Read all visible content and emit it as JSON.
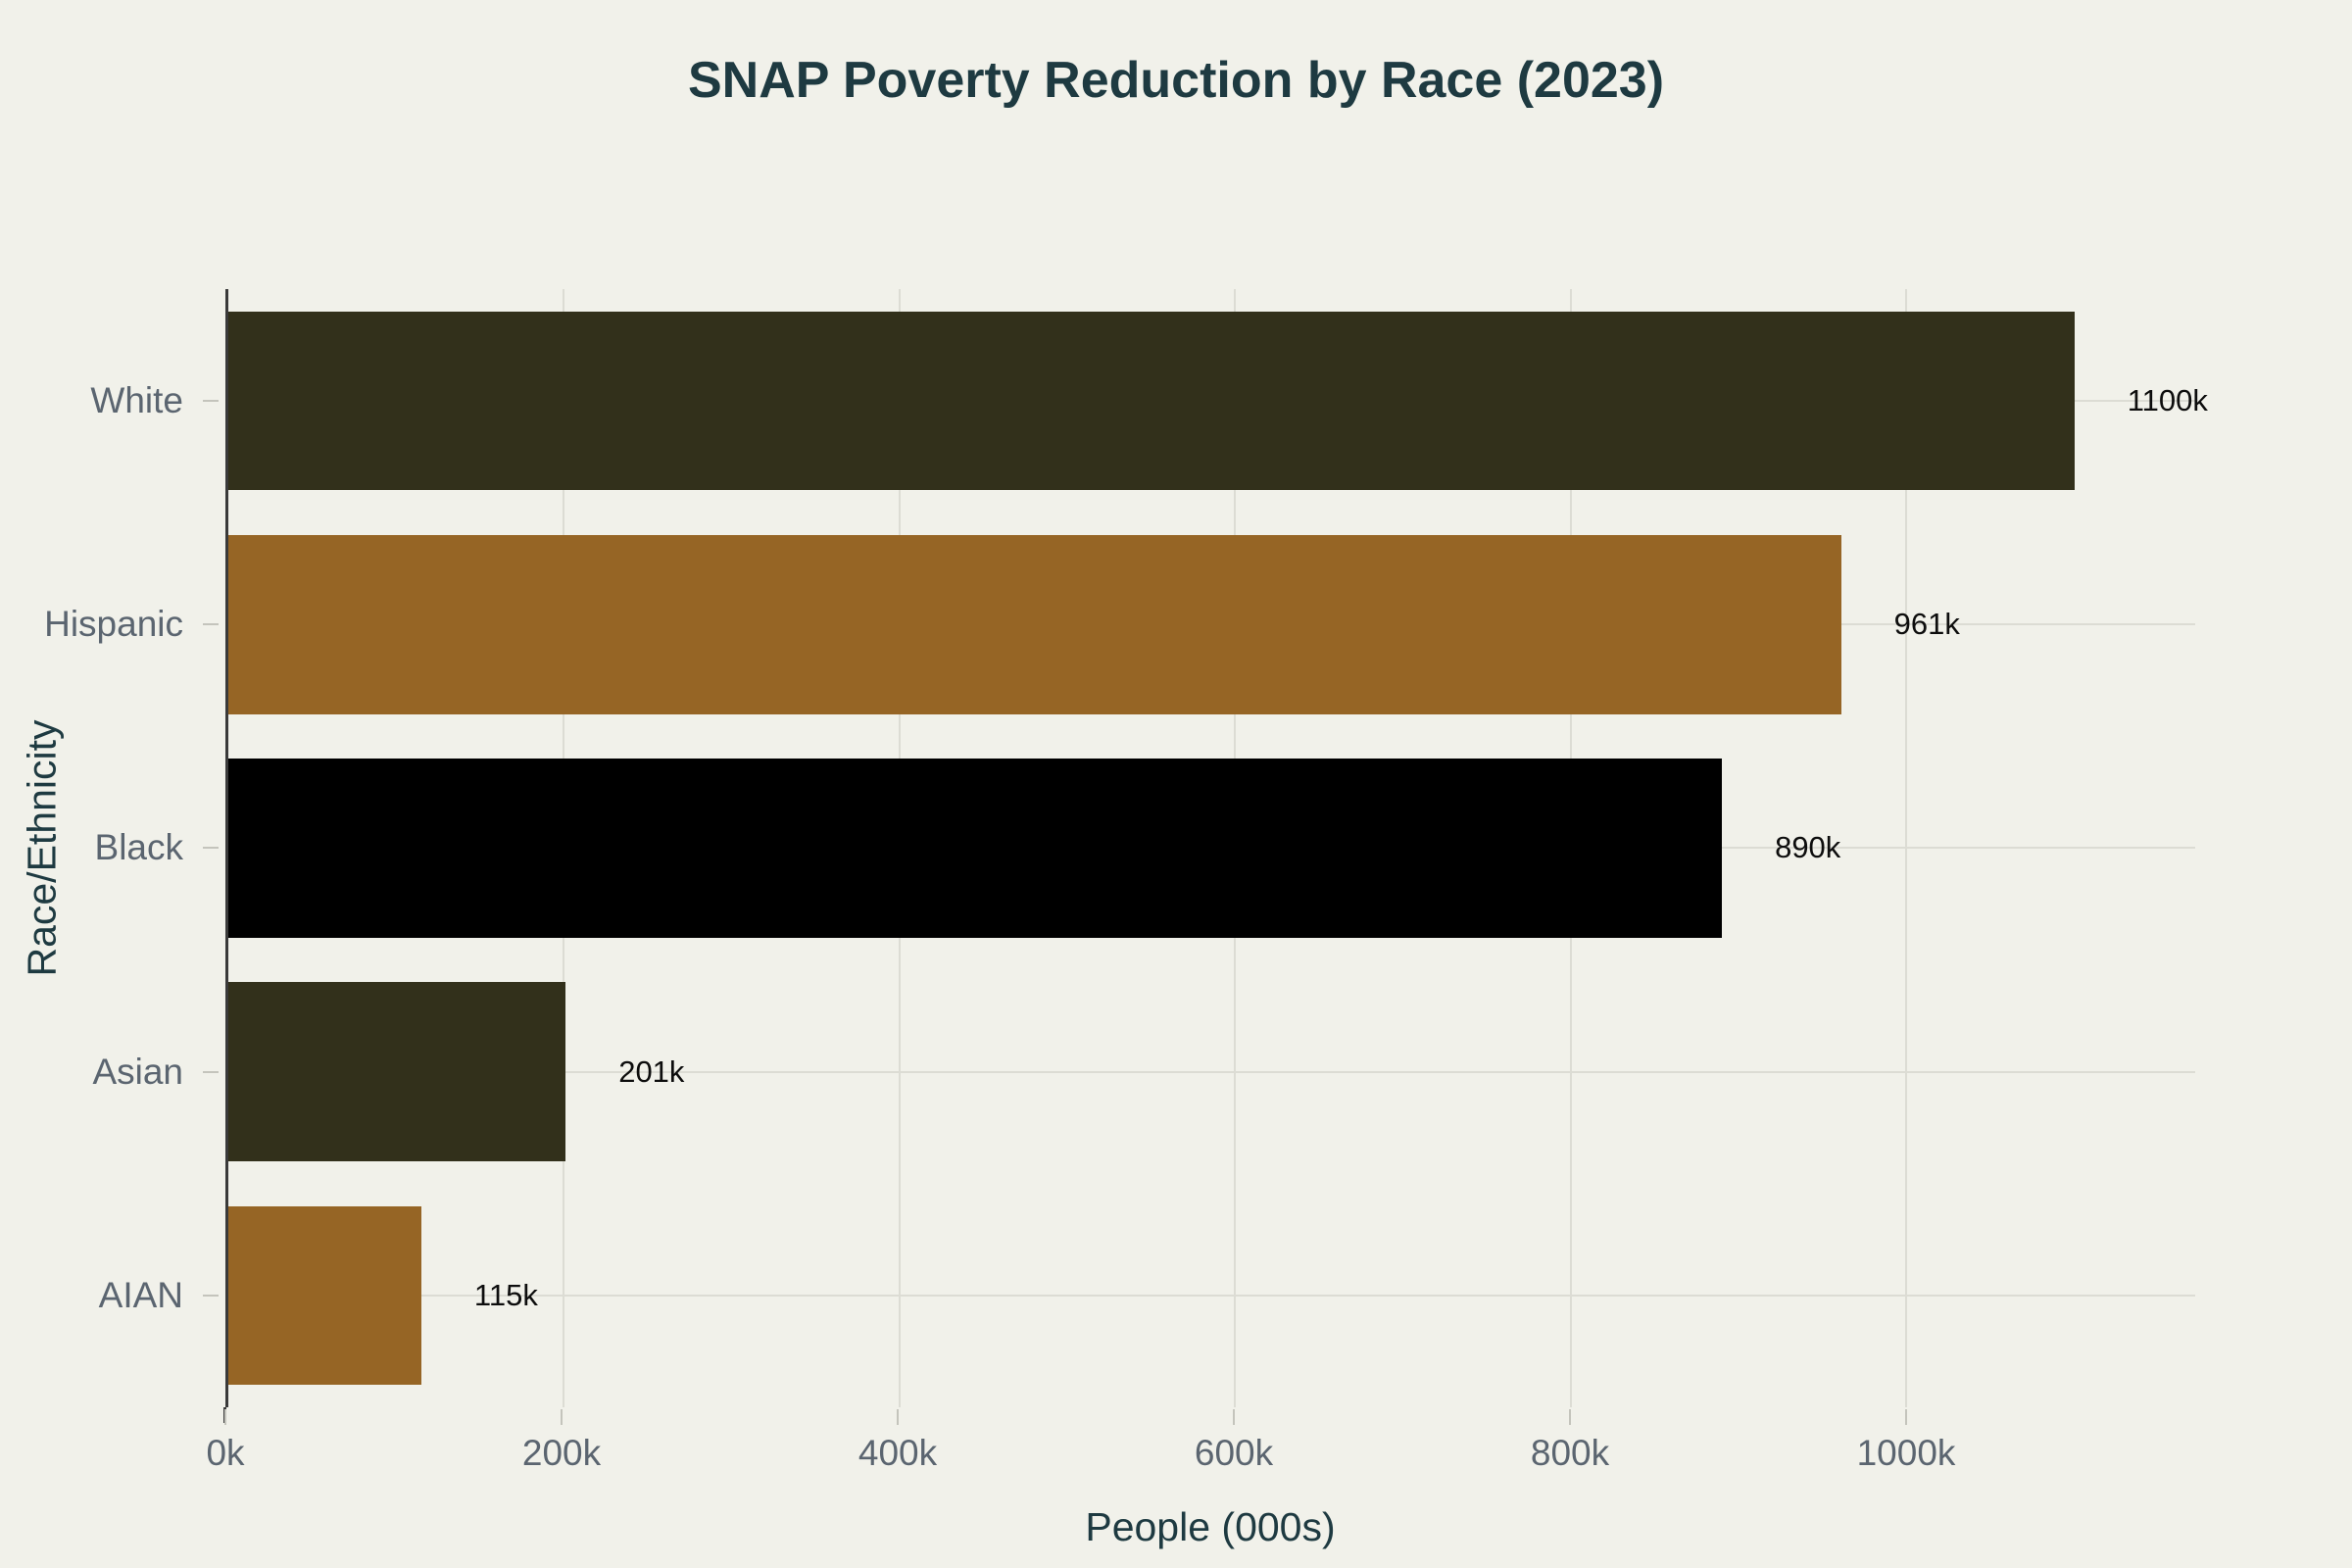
{
  "page": {
    "background": "#f1f1ea"
  },
  "chart_data": {
    "type": "bar",
    "orientation": "horizontal",
    "title": "SNAP Poverty Reduction by Race (2023)",
    "xlabel": "People (000s)",
    "ylabel": "Race/Ethnicity",
    "categories": [
      "White",
      "Hispanic",
      "Black",
      "Asian",
      "AIAN"
    ],
    "values": [
      1100,
      961,
      890,
      201,
      115
    ],
    "value_labels": [
      "1100k",
      "961k",
      "890k",
      "201k",
      "115k"
    ],
    "bar_colors": [
      "#32301b",
      "#966525",
      "#000000",
      "#32301b",
      "#966525"
    ],
    "xlim": [
      0,
      1172
    ],
    "xticks": [
      200,
      400,
      600,
      800,
      1000
    ],
    "xtick_positions": [
      0,
      200,
      400,
      600,
      800,
      1000
    ],
    "xtick_labels": [
      "0k",
      "200k",
      "400k",
      "600k",
      "800k",
      "1000k"
    ],
    "grid": true,
    "legend_position": "none"
  },
  "style": {
    "background_color": "#f1f1ea",
    "title_color": "#1e3a41",
    "axis_title_color": "#1e3a41",
    "tick_label_color": "#5b6570",
    "value_label_color": "#0d0d0d",
    "grid_color": "#dcdcd4",
    "axis_line_color": "#3a3a3a",
    "tick_mark_color": "#c4c4bc"
  }
}
